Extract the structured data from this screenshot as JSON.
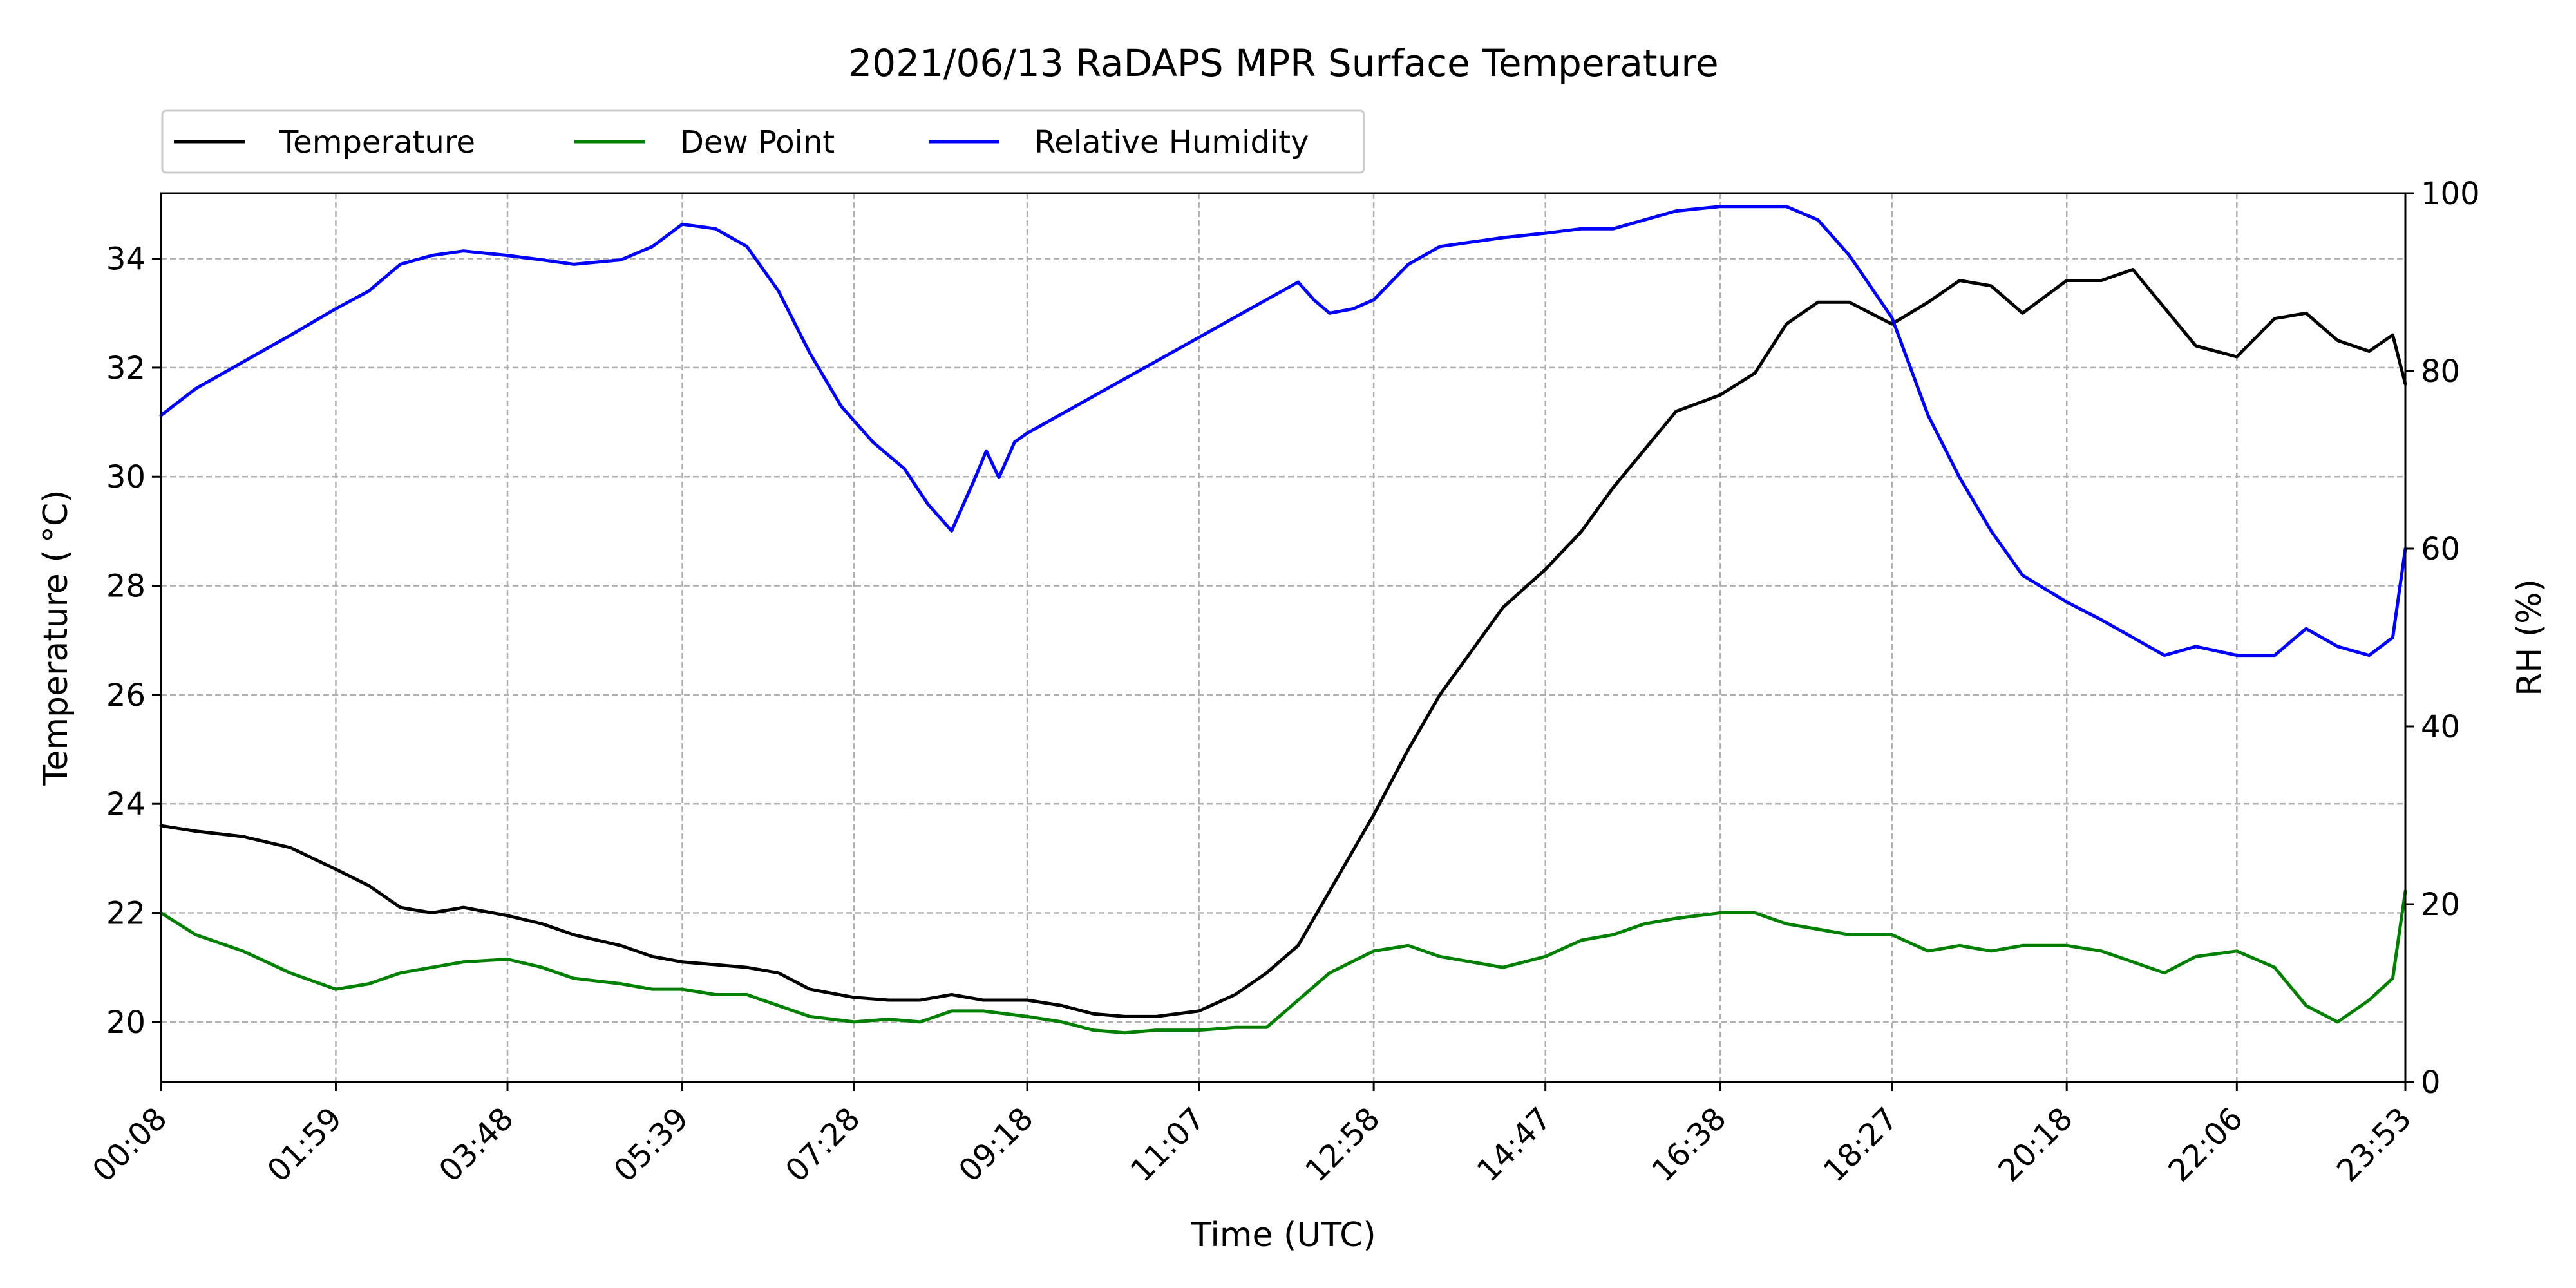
{
  "chart_data": {
    "type": "line",
    "title": "2021/06/13 RaDAPS MPR Surface Temperature",
    "xlabel": "Time (UTC)",
    "ylabel": "Temperature ($^\\circ$C)",
    "ylabel_display": "Temperature ( °C)",
    "ylabel_right": "RH (%)",
    "x_ticks": [
      "00:08",
      "01:59",
      "03:48",
      "05:39",
      "07:28",
      "09:18",
      "11:07",
      "12:58",
      "14:47",
      "16:38",
      "18:27",
      "20:18",
      "22:06",
      "23:53"
    ],
    "xlim": [
      "00:08",
      "23:53"
    ],
    "ylim": [
      18.9,
      35.2
    ],
    "y_ticks": [
      20,
      22,
      24,
      26,
      28,
      30,
      32,
      34
    ],
    "ylim_right": [
      0,
      100
    ],
    "y_ticks_right": [
      0,
      20,
      40,
      60,
      80,
      100
    ],
    "grid": true,
    "legend_position": "above plot, top-left, single row",
    "series": [
      {
        "name": "Temperature",
        "color": "#000000",
        "axis": "left",
        "x": [
          "00:08",
          "00:30",
          "01:00",
          "01:30",
          "01:59",
          "02:20",
          "02:40",
          "03:00",
          "03:20",
          "03:48",
          "04:10",
          "04:30",
          "05:00",
          "05:20",
          "05:39",
          "06:00",
          "06:20",
          "06:40",
          "07:00",
          "07:28",
          "07:50",
          "08:10",
          "08:30",
          "08:50",
          "09:18",
          "09:40",
          "10:00",
          "10:20",
          "10:40",
          "11:07",
          "11:30",
          "11:50",
          "12:10",
          "12:30",
          "12:58",
          "13:20",
          "13:40",
          "14:00",
          "14:20",
          "14:47",
          "15:10",
          "15:30",
          "15:50",
          "16:10",
          "16:38",
          "17:00",
          "17:20",
          "17:40",
          "18:00",
          "18:27",
          "18:50",
          "19:10",
          "19:30",
          "19:50",
          "20:18",
          "20:40",
          "21:00",
          "21:20",
          "21:40",
          "22:06",
          "22:30",
          "22:50",
          "23:10",
          "23:30",
          "23:45",
          "23:53"
        ],
        "values": [
          23.6,
          23.5,
          23.4,
          23.2,
          22.8,
          22.5,
          22.1,
          22.0,
          22.1,
          21.95,
          21.8,
          21.6,
          21.4,
          21.2,
          21.1,
          21.05,
          21.0,
          20.9,
          20.6,
          20.45,
          20.4,
          20.4,
          20.5,
          20.4,
          20.4,
          20.3,
          20.15,
          20.1,
          20.1,
          20.2,
          20.5,
          20.9,
          21.4,
          22.4,
          23.8,
          25.0,
          26.0,
          26.8,
          27.6,
          28.3,
          29.0,
          29.8,
          30.5,
          31.2,
          31.5,
          31.9,
          32.8,
          33.2,
          33.2,
          32.8,
          33.2,
          33.6,
          33.5,
          33.0,
          33.6,
          33.6,
          33.8,
          33.1,
          32.4,
          32.2,
          32.9,
          33.0,
          32.5,
          32.3,
          32.6,
          31.7
        ]
      },
      {
        "name": "Dew Point",
        "color": "#008000",
        "axis": "left",
        "x": [
          "00:08",
          "00:30",
          "01:00",
          "01:30",
          "01:59",
          "02:20",
          "02:40",
          "03:00",
          "03:20",
          "03:48",
          "04:10",
          "04:30",
          "05:00",
          "05:20",
          "05:39",
          "06:00",
          "06:20",
          "06:40",
          "07:00",
          "07:28",
          "07:50",
          "08:10",
          "08:30",
          "08:50",
          "09:18",
          "09:40",
          "10:00",
          "10:20",
          "10:40",
          "11:07",
          "11:30",
          "11:50",
          "12:10",
          "12:30",
          "12:58",
          "13:20",
          "13:40",
          "14:00",
          "14:20",
          "14:47",
          "15:10",
          "15:30",
          "15:50",
          "16:10",
          "16:38",
          "17:00",
          "17:20",
          "17:40",
          "18:00",
          "18:27",
          "18:50",
          "19:10",
          "19:30",
          "19:50",
          "20:18",
          "20:40",
          "21:00",
          "21:20",
          "21:40",
          "22:06",
          "22:30",
          "22:50",
          "23:10",
          "23:30",
          "23:45",
          "23:53"
        ],
        "values": [
          22.0,
          21.6,
          21.3,
          20.9,
          20.6,
          20.7,
          20.9,
          21.0,
          21.1,
          21.15,
          21.0,
          20.8,
          20.7,
          20.6,
          20.6,
          20.5,
          20.5,
          20.3,
          20.1,
          20.0,
          20.05,
          20.0,
          20.2,
          20.2,
          20.1,
          20.0,
          19.85,
          19.8,
          19.85,
          19.85,
          19.9,
          19.9,
          20.4,
          20.9,
          21.3,
          21.4,
          21.2,
          21.1,
          21.0,
          21.2,
          21.5,
          21.6,
          21.8,
          21.9,
          22.0,
          22.0,
          21.8,
          21.7,
          21.6,
          21.6,
          21.3,
          21.4,
          21.3,
          21.4,
          21.4,
          21.3,
          21.1,
          20.9,
          21.2,
          21.3,
          21.0,
          20.3,
          20.0,
          20.4,
          20.8,
          22.4
        ]
      },
      {
        "name": "Relative Humidity",
        "color": "#0000ff",
        "axis": "right",
        "x": [
          "00:08",
          "00:30",
          "01:00",
          "01:30",
          "01:59",
          "02:20",
          "02:40",
          "03:00",
          "03:20",
          "03:48",
          "04:10",
          "04:30",
          "05:00",
          "05:20",
          "05:39",
          "06:00",
          "06:20",
          "06:40",
          "07:00",
          "07:20",
          "07:40",
          "08:00",
          "08:15",
          "08:30",
          "08:45",
          "08:52",
          "09:00",
          "09:10",
          "09:18",
          "12:10",
          "12:20",
          "12:30",
          "12:45",
          "12:58",
          "13:20",
          "13:40",
          "14:00",
          "14:20",
          "14:47",
          "15:10",
          "15:30",
          "15:50",
          "16:10",
          "16:38",
          "17:00",
          "17:20",
          "17:40",
          "18:00",
          "18:27",
          "18:50",
          "19:10",
          "19:30",
          "19:50",
          "20:18",
          "20:40",
          "21:00",
          "21:20",
          "21:40",
          "22:06",
          "22:30",
          "22:50",
          "23:10",
          "23:30",
          "23:45",
          "23:53"
        ],
        "values": [
          75,
          78,
          81,
          84,
          87,
          89,
          92,
          93,
          93.5,
          93,
          92.5,
          92,
          92.5,
          94,
          96.5,
          96,
          94,
          89,
          82,
          76,
          72,
          69,
          65,
          62,
          68,
          71,
          68,
          72,
          73,
          90,
          88,
          86.5,
          87,
          88,
          92,
          94,
          94.5,
          95,
          95.5,
          96,
          96,
          97,
          98,
          98.5,
          98.5,
          98.5,
          97,
          93,
          86,
          75,
          68,
          62,
          57,
          54,
          52,
          50,
          48,
          49,
          48,
          48,
          51,
          49,
          48,
          50,
          60
        ]
      }
    ]
  }
}
